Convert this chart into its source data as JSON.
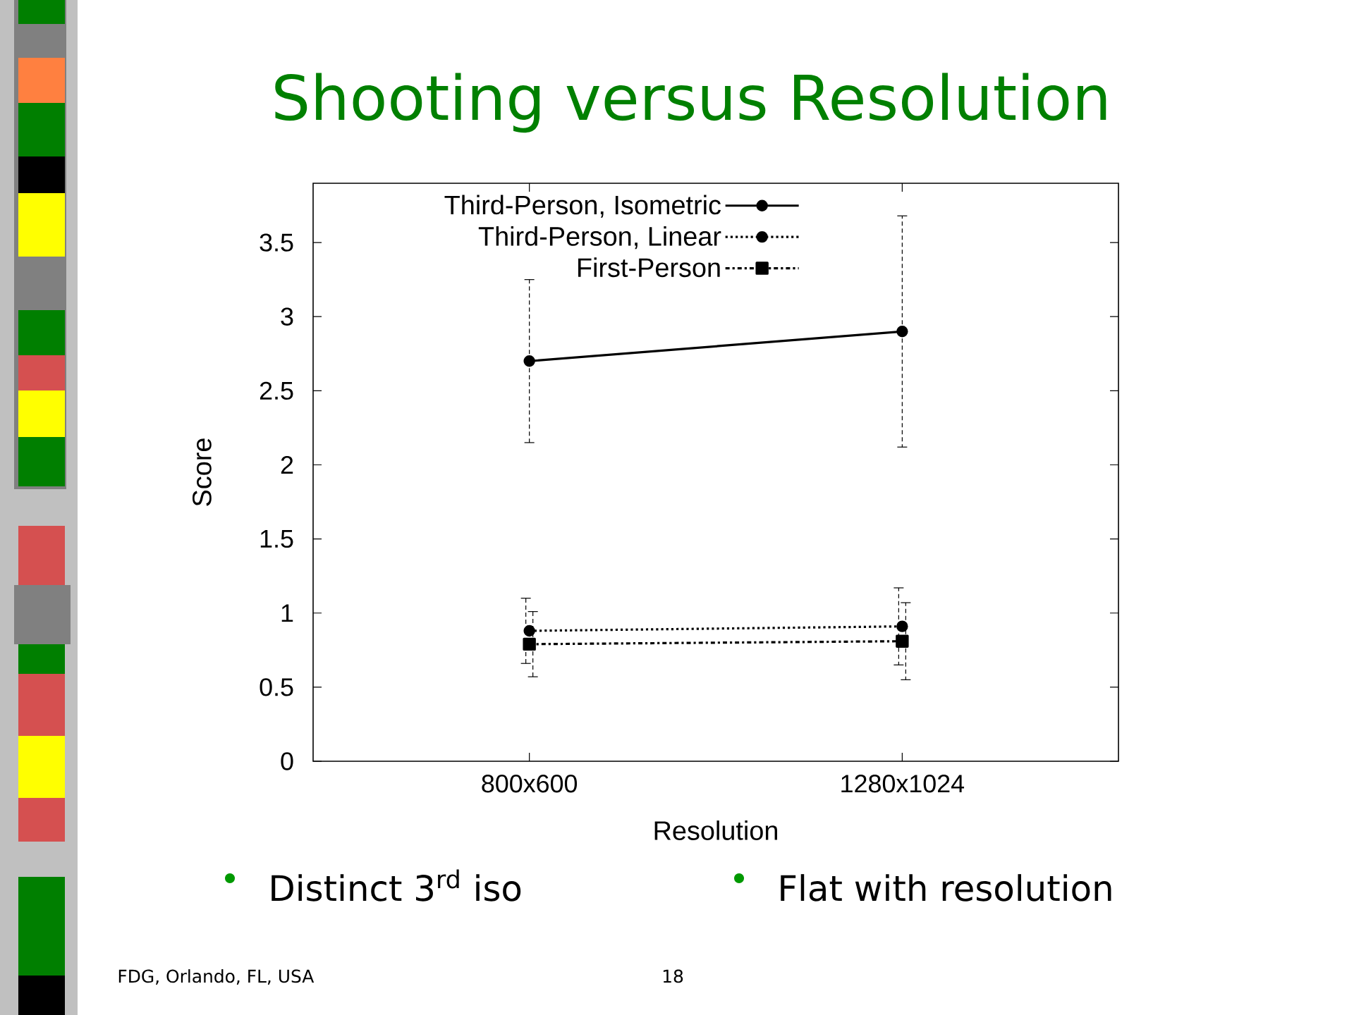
{
  "chart_data": {
    "type": "line",
    "title": "Shooting versus Resolution",
    "xlabel": "Resolution",
    "ylabel": "Score",
    "categories": [
      "800x600",
      "1280x1024"
    ],
    "series": [
      {
        "name": "Third-Person, Isometric",
        "color": "#000000",
        "values": [
          2.7,
          2.9
        ],
        "errors": [
          0.55,
          0.78
        ],
        "marker": "circle",
        "line_style": "solid"
      },
      {
        "name": "Third-Person, Linear",
        "color": "#000000",
        "values": [
          0.88,
          0.91
        ],
        "errors": [
          0.22,
          0.26
        ],
        "marker": "circle",
        "line_style": "dotted"
      },
      {
        "name": "First-Person",
        "color": "#000000",
        "values": [
          0.79,
          0.81
        ],
        "errors": [
          0.22,
          0.26
        ],
        "marker": "square",
        "line_style": "dashdot"
      }
    ],
    "ylim": [
      0,
      3.9
    ],
    "yticks": [
      0,
      0.5,
      1,
      1.5,
      2,
      2.5,
      3,
      3.5
    ],
    "legend": "top left",
    "annotations": [
      "Distinct 3$^{rd}$ iso",
      "Flat with resolution",
      "FDG, Orlando, FL, USA",
      "18"
    ]
  }
}
